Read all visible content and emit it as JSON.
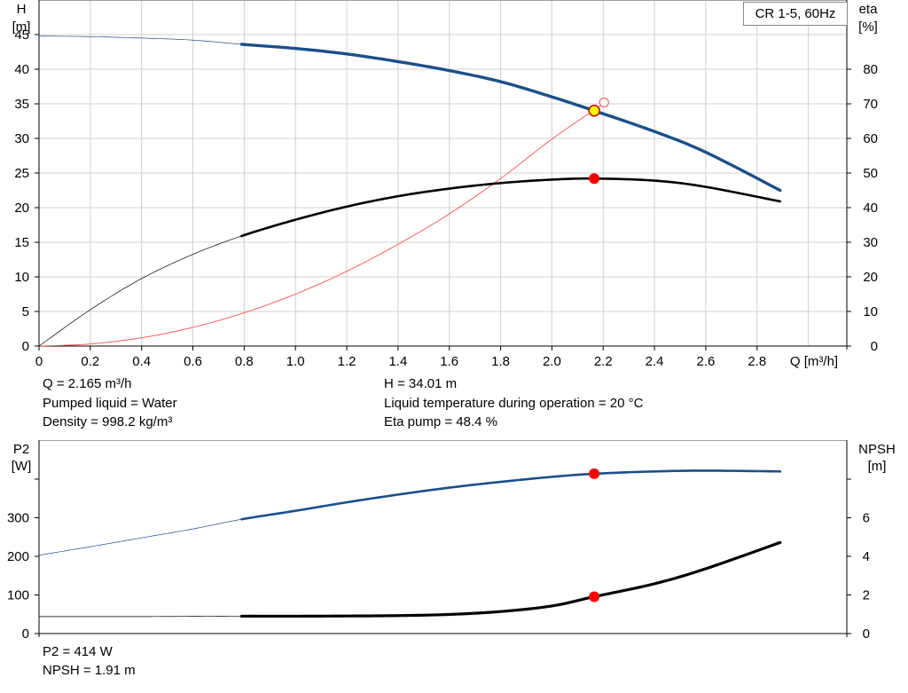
{
  "title": "CR 1-5, 60Hz",
  "colors": {
    "head": "#1a4f8a",
    "eta": "#000000",
    "system": "#ff4d4d",
    "p2": "#1a4f8a",
    "npsh": "#000000",
    "grid": "#d0d0d0",
    "point": "#ff0000",
    "op_fill": "#ffff00"
  },
  "chart_data": [
    {
      "type": "line",
      "title": "CR 1-5, 60Hz",
      "xlabel": "Q [m³/h]",
      "ylabel_left": [
        "H",
        "[m]"
      ],
      "ylabel_right": [
        "eta",
        "[%]"
      ],
      "xlim": [
        0,
        3.15
      ],
      "ylim_left": [
        0,
        50
      ],
      "ylim_right": [
        0,
        100
      ],
      "x_ticks": [
        "0",
        "0.2",
        "0.4",
        "0.6",
        "0.8",
        "1.0",
        "1.2",
        "1.4",
        "1.6",
        "1.8",
        "2.0",
        "2.2",
        "2.4",
        "2.6",
        "2.8"
      ],
      "y_left_ticks": [
        "0",
        "5",
        "10",
        "15",
        "20",
        "25",
        "30",
        "35",
        "40",
        "45"
      ],
      "y_right_ticks": [
        "0",
        "10",
        "20",
        "30",
        "40",
        "50",
        "60",
        "70",
        "80"
      ],
      "grid": true,
      "series": [
        {
          "key": "head",
          "axis": "left",
          "x": [
            0,
            0.2,
            0.4,
            0.6,
            0.79,
            1.0,
            1.2,
            1.4,
            1.6,
            1.8,
            2.0,
            2.165,
            2.4,
            2.6,
            2.89
          ],
          "y": [
            44.8,
            44.7,
            44.5,
            44.2,
            43.6,
            43.0,
            42.2,
            41.1,
            39.8,
            38.2,
            36.0,
            34.0,
            31.0,
            28.0,
            22.5
          ],
          "thin_until": 0.79
        },
        {
          "key": "eta",
          "axis": "right",
          "x": [
            0,
            0.2,
            0.4,
            0.6,
            0.79,
            1.0,
            1.2,
            1.4,
            1.6,
            1.8,
            2.0,
            2.165,
            2.4,
            2.6,
            2.89
          ],
          "y": [
            0,
            10.5,
            19.5,
            26.5,
            31.8,
            36.5,
            40.3,
            43.3,
            45.5,
            47.1,
            48.1,
            48.4,
            47.8,
            46.0,
            41.8
          ],
          "thin_until": 0.79
        },
        {
          "key": "system",
          "axis": "left",
          "x": [
            0,
            0.2,
            0.4,
            0.6,
            0.8,
            1.0,
            1.2,
            1.4,
            1.6,
            1.8,
            2.0,
            2.2
          ],
          "y": [
            0,
            0.3,
            1.2,
            2.7,
            4.8,
            7.5,
            10.8,
            14.7,
            19.1,
            24.2,
            29.9,
            35.0
          ]
        }
      ],
      "operating_point": {
        "q": 2.165,
        "h": 34.01,
        "eta": 48.4
      },
      "system_end_marker": {
        "q": 2.2,
        "h": 35.2
      }
    },
    {
      "type": "line",
      "xlim": [
        0,
        3.15
      ],
      "ylabel_left": [
        "P2",
        "[W]"
      ],
      "ylabel_right": [
        "NPSH",
        "[m]"
      ],
      "ylim_left": [
        0,
        400
      ],
      "ylim_right": [
        0,
        8
      ],
      "y_left_ticks": [
        "0",
        "100",
        "200",
        "300"
      ],
      "y_right_ticks": [
        "0",
        "2",
        "4",
        "6"
      ],
      "series": [
        {
          "key": "p2",
          "axis": "left",
          "x": [
            0,
            0.2,
            0.4,
            0.6,
            0.79,
            1.0,
            1.2,
            1.4,
            1.6,
            1.8,
            2.0,
            2.165,
            2.4,
            2.6,
            2.89
          ],
          "y": [
            203,
            225,
            248,
            271,
            296,
            318,
            340,
            360,
            378,
            393,
            406,
            414,
            420,
            422,
            420
          ],
          "thin_until": 0.79
        },
        {
          "key": "npsh",
          "axis": "right",
          "x": [
            0,
            0.2,
            0.4,
            0.6,
            0.79,
            1.0,
            1.2,
            1.4,
            1.6,
            1.8,
            2.0,
            2.165,
            2.4,
            2.6,
            2.89
          ],
          "y": [
            0.88,
            0.88,
            0.88,
            0.89,
            0.9,
            0.9,
            0.91,
            0.93,
            0.99,
            1.14,
            1.43,
            1.91,
            2.58,
            3.36,
            4.72
          ],
          "thin_until": 0.79
        }
      ],
      "operating_point": {
        "q": 2.165,
        "p2": 414,
        "npsh": 1.91
      }
    }
  ],
  "info": {
    "q": "Q = 2.165 m³/h",
    "liquid": "Pumped liquid = Water",
    "density": "Density = 998.2 kg/m³",
    "h": "H = 34.01 m",
    "temp": "Liquid temperature during operation = 20 °C",
    "eta": "Eta pump = 48.4 %",
    "p2": "P2 = 414 W",
    "npsh": "NPSH = 1.91 m"
  }
}
